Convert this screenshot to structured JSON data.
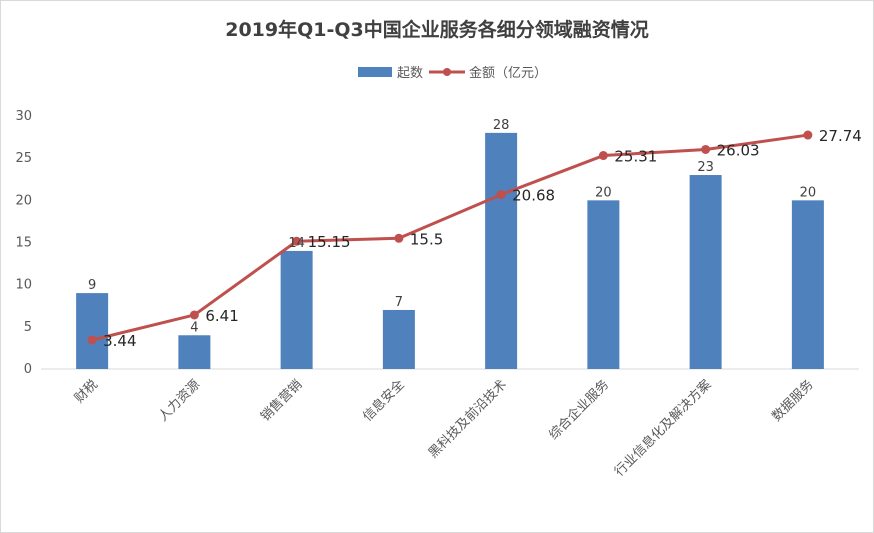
{
  "chart_data": {
    "type": "bar",
    "title": "2019年Q1-Q3中国企业服务各细分领域融资情况",
    "categories": [
      "财税",
      "人力资源",
      "销售营销",
      "信息安全",
      "黑科技及前沿技术",
      "综合企业服务",
      "行业信息化及解决方案",
      "数据服务"
    ],
    "series": [
      {
        "name": "起数",
        "type": "bar",
        "color": "#4f81bd",
        "values": [
          9,
          4,
          14,
          7,
          28,
          20,
          23,
          20
        ]
      },
      {
        "name": "金额（亿元）",
        "type": "line",
        "color": "#c0504d",
        "values": [
          3.44,
          6.41,
          15.15,
          15.5,
          20.68,
          25.31,
          26.03,
          27.74
        ]
      }
    ],
    "ylim": [
      0,
      30
    ],
    "yticks": [
      0,
      5,
      10,
      15,
      20,
      25,
      30
    ],
    "grid": false,
    "legend_position": "top-center"
  }
}
